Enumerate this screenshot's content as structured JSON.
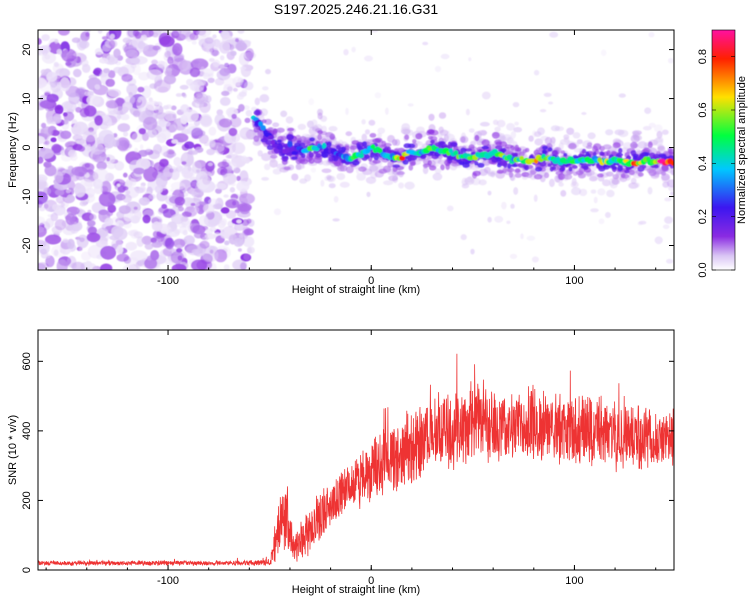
{
  "figure": {
    "title": "S197.2025.246.21.16.G31"
  },
  "chart_data": [
    {
      "type": "heatmap",
      "name": "spectrogram",
      "xlabel": "Height of straight line (km)",
      "ylabel": "Frequency (Hz)",
      "xlim": [
        -164,
        149
      ],
      "ylim": [
        -25,
        24
      ],
      "x_ticks": [
        -100,
        0,
        100
      ],
      "y_ticks": [
        -20,
        -10,
        0,
        10,
        20
      ],
      "colorbar": {
        "label": "Normalized spectral amplitude",
        "range": [
          0.0,
          0.9
        ],
        "ticks": [
          "0.0",
          "0.2",
          "0.4",
          "0.6",
          "0.8"
        ],
        "colormap": [
          "#ffffff",
          "#d9c4f4",
          "#8a2be2",
          "#3c16f0",
          "#00c8ff",
          "#00ff40",
          "#ffe000",
          "#ff2000",
          "#ff10a0"
        ]
      },
      "noise_region_x": [
        -164,
        -59
      ],
      "ridge": {
        "x": [
          -58,
          -55,
          -52,
          -50,
          -48,
          -45,
          -42,
          -40,
          -38,
          -35,
          -32,
          -30,
          -27,
          -24,
          -20,
          -16,
          -12,
          -8,
          -4,
          0,
          5,
          10,
          15,
          20,
          25,
          30,
          35,
          40,
          45,
          50,
          55,
          60,
          65,
          70,
          75,
          80,
          85,
          90,
          95,
          100,
          105,
          110,
          115,
          120,
          125,
          130,
          135,
          140,
          145,
          148
        ],
        "freq": [
          6,
          5,
          3,
          2,
          0.5,
          0,
          -1,
          0.5,
          -1,
          -0.5,
          -0.5,
          0,
          0,
          0.5,
          -1,
          -1,
          -2,
          -2,
          -1,
          0,
          -1,
          -2,
          -2,
          -1,
          -1,
          0,
          -0.5,
          -1,
          -2,
          -2,
          -1.5,
          -1,
          -2,
          -2.5,
          -2.5,
          -2.5,
          -2,
          -2.5,
          -3,
          -2.5,
          -2.5,
          -2.5,
          -3,
          -2.5,
          -3,
          -3,
          -2.5,
          -3,
          -3,
          -3
        ],
        "amplitude": [
          0.45,
          0.42,
          0.35,
          0.3,
          0.32,
          0.3,
          0.28,
          0.4,
          0.3,
          0.4,
          0.45,
          0.7,
          0.55,
          0.5,
          0.35,
          0.4,
          0.45,
          0.6,
          0.5,
          0.6,
          0.55,
          0.45,
          0.75,
          0.5,
          0.55,
          0.7,
          0.5,
          0.6,
          0.65,
          0.6,
          0.6,
          0.55,
          0.6,
          0.5,
          0.7,
          0.7,
          0.6,
          0.55,
          0.5,
          0.6,
          0.55,
          0.5,
          0.65,
          0.6,
          0.7,
          0.75,
          0.6,
          0.8,
          0.85,
          0.8
        ]
      }
    },
    {
      "type": "line",
      "name": "snr",
      "xlabel": "Height of straight line (km)",
      "ylabel": "SNR (10 * v/v)",
      "xlim": [
        -164,
        149
      ],
      "ylim": [
        0,
        690
      ],
      "x_ticks": [
        -100,
        0,
        100
      ],
      "y_ticks": [
        0,
        200,
        400,
        600
      ],
      "color": "#ee3333",
      "envelope": {
        "x": [
          -164,
          -100,
          -60,
          -50,
          -48,
          -46,
          -44,
          -42,
          -40,
          -38,
          -35,
          -30,
          -25,
          -20,
          -15,
          -10,
          -5,
          0,
          10,
          20,
          30,
          40,
          50,
          60,
          70,
          80,
          90,
          100,
          110,
          120,
          130,
          140,
          149
        ],
        "mean": [
          20,
          20,
          20,
          22,
          60,
          110,
          150,
          170,
          120,
          70,
          90,
          120,
          150,
          190,
          220,
          240,
          260,
          280,
          320,
          350,
          380,
          410,
          420,
          420,
          410,
          410,
          400,
          400,
          395,
          390,
          385,
          380,
          375
        ],
        "spread": [
          8,
          8,
          8,
          10,
          50,
          80,
          110,
          120,
          90,
          60,
          70,
          80,
          80,
          80,
          80,
          80,
          90,
          100,
          110,
          120,
          130,
          130,
          130,
          130,
          130,
          130,
          120,
          120,
          110,
          110,
          110,
          100,
          100
        ]
      }
    }
  ]
}
